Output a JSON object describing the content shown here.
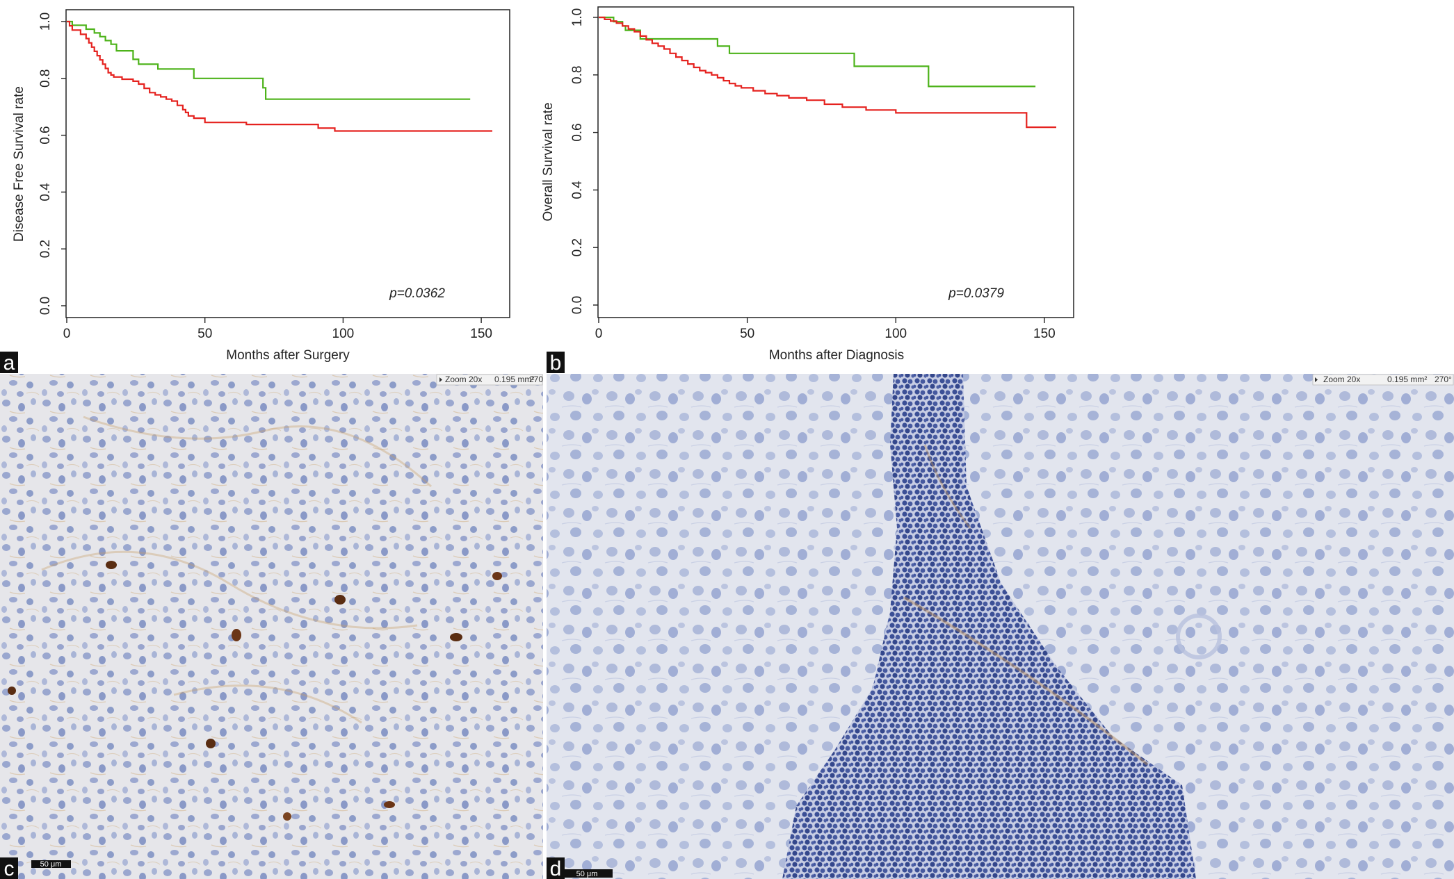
{
  "figure": {
    "panel_labels": [
      "a",
      "b",
      "c",
      "d"
    ],
    "micrographs": [
      {
        "id": "c",
        "hud": {
          "zoom": "Zoom 20x",
          "area": "0.195 mm²",
          "angle": "270°"
        },
        "scale_bar": "50 μm",
        "stain": {
          "background": "#e6e6ea",
          "nuclei": "#7d8fc2",
          "stromal_stain": "#c79b62",
          "positive_cells": "#5a2d12"
        }
      },
      {
        "id": "d",
        "hud": {
          "zoom": "Zoom 20x",
          "area": "0.195 mm²",
          "angle": "270°"
        },
        "scale_bar": "50 μm",
        "stain": {
          "background": "#e2e5ee",
          "nuclei": "#6f84bf",
          "lymphocytes": "#3b4f96",
          "stromal_stain": "#c4955a"
        }
      }
    ]
  },
  "chart_data": [
    {
      "type": "line",
      "panel": "a",
      "xlabel": "Months after Surgery",
      "ylabel": "Disease Free Survival rate",
      "xlim": [
        0,
        155
      ],
      "ylim": [
        0,
        1.0
      ],
      "xticks": [
        "0",
        "50",
        "100",
        "150"
      ],
      "yticks": [
        "0.0",
        "0.2",
        "0.4",
        "0.6",
        "0.8",
        "1.0"
      ],
      "annotation": "p=0.0362",
      "step": true,
      "series": [
        {
          "color": "#4db31a",
          "x": [
            0,
            2,
            7,
            10,
            12,
            14,
            16,
            18,
            24,
            26,
            33,
            46,
            71,
            72,
            146
          ],
          "y": [
            1.0,
            0.987,
            0.973,
            0.96,
            0.947,
            0.933,
            0.92,
            0.897,
            0.867,
            0.85,
            0.833,
            0.8,
            0.767,
            0.727,
            0.727
          ]
        },
        {
          "color": "#e5221f",
          "x": [
            0,
            1,
            2,
            5,
            7,
            8,
            9,
            10,
            11,
            12,
            13,
            14,
            15,
            16,
            17,
            20,
            24,
            26,
            28,
            30,
            32,
            34,
            36,
            38,
            40,
            42,
            43,
            44,
            46,
            50,
            65,
            91,
            97,
            154
          ],
          "y": [
            1.0,
            0.985,
            0.97,
            0.955,
            0.94,
            0.925,
            0.91,
            0.895,
            0.88,
            0.865,
            0.85,
            0.835,
            0.82,
            0.812,
            0.805,
            0.797,
            0.79,
            0.78,
            0.765,
            0.75,
            0.742,
            0.735,
            0.727,
            0.72,
            0.705,
            0.69,
            0.68,
            0.668,
            0.66,
            0.645,
            0.638,
            0.625,
            0.615,
            0.615
          ]
        }
      ]
    },
    {
      "type": "line",
      "panel": "b",
      "xlabel": "Months after Diagnosis",
      "ylabel": "Overall Survival rate",
      "xlim": [
        0,
        155
      ],
      "ylim": [
        0,
        1.0
      ],
      "xticks": [
        "0",
        "50",
        "100",
        "150"
      ],
      "yticks": [
        "0.0",
        "0.2",
        "0.4",
        "0.6",
        "0.8",
        "1.0"
      ],
      "annotation": "p=0.0379",
      "step": true,
      "series": [
        {
          "color": "#4db31a",
          "x": [
            0,
            5,
            8,
            9,
            14,
            40,
            44,
            86,
            111,
            147
          ],
          "y": [
            1.0,
            0.985,
            0.97,
            0.955,
            0.925,
            0.9,
            0.875,
            0.83,
            0.76,
            0.76
          ]
        },
        {
          "color": "#e5221f",
          "x": [
            0,
            2,
            4,
            6,
            8,
            10,
            12,
            14,
            16,
            18,
            20,
            22,
            24,
            26,
            28,
            30,
            32,
            34,
            36,
            38,
            40,
            42,
            44,
            46,
            48,
            52,
            56,
            60,
            64,
            70,
            76,
            82,
            90,
            100,
            144,
            154
          ],
          "y": [
            1.0,
            0.993,
            0.987,
            0.98,
            0.97,
            0.96,
            0.95,
            0.935,
            0.922,
            0.91,
            0.9,
            0.89,
            0.875,
            0.862,
            0.85,
            0.838,
            0.826,
            0.815,
            0.808,
            0.8,
            0.79,
            0.78,
            0.77,
            0.762,
            0.755,
            0.745,
            0.735,
            0.728,
            0.72,
            0.712,
            0.698,
            0.688,
            0.678,
            0.668,
            0.618,
            0.618
          ]
        }
      ]
    }
  ]
}
